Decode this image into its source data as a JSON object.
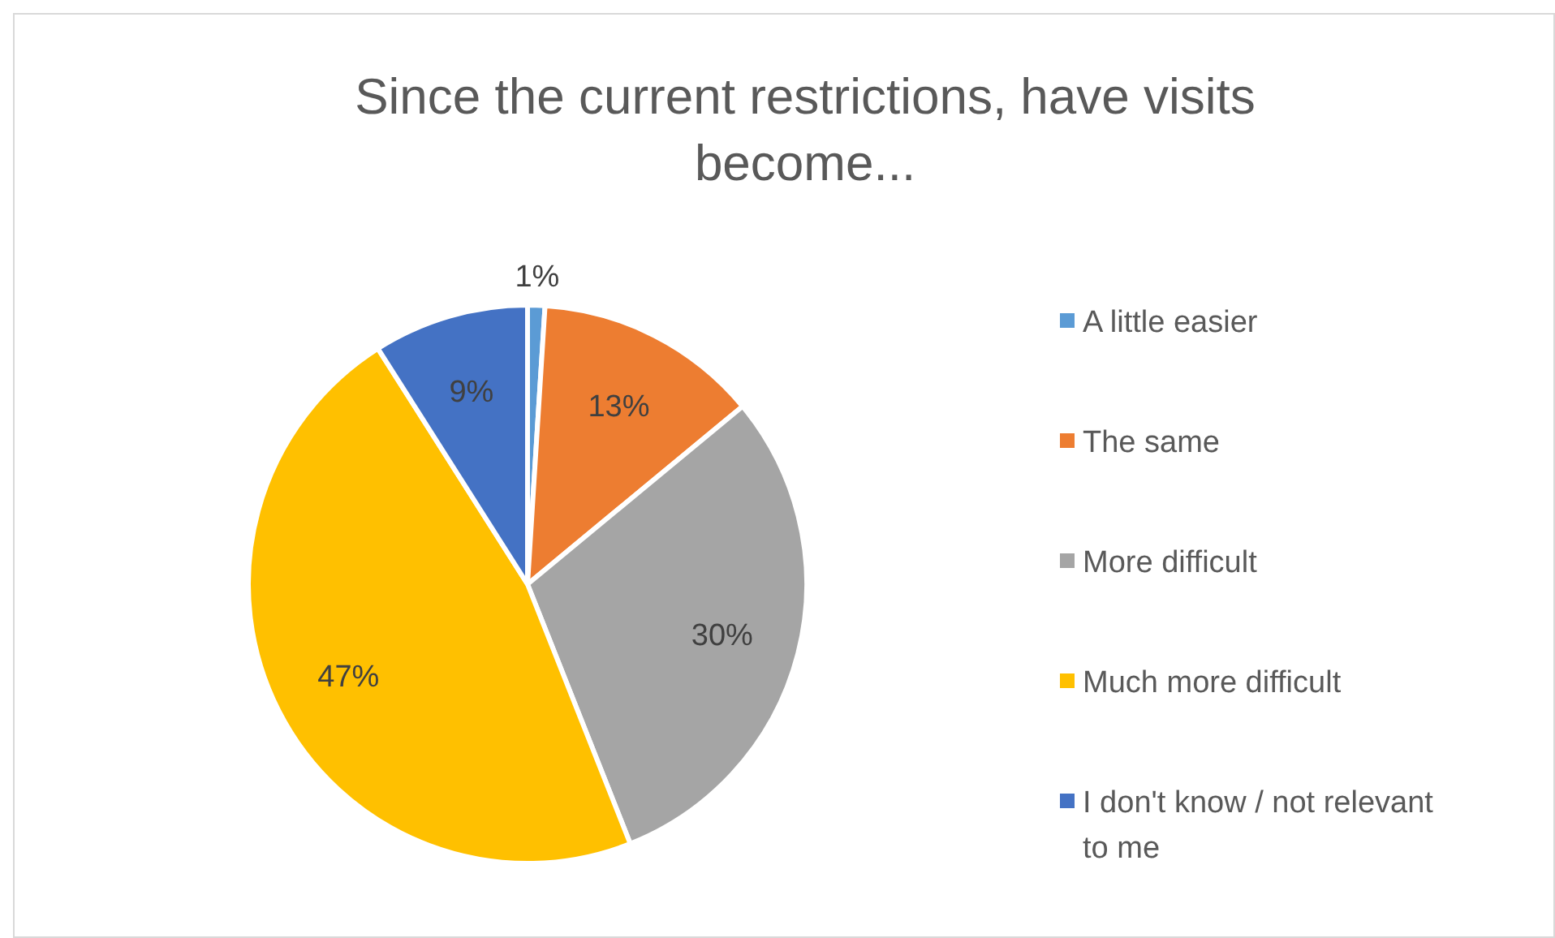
{
  "chart_data": {
    "type": "pie",
    "title": "Since the current restrictions, have visits become...",
    "categories": [
      "A little easier",
      "The same",
      "More difficult",
      "Much more difficult",
      "I don't know / not relevant to me"
    ],
    "values": [
      1,
      13,
      30,
      47,
      9
    ],
    "colors": [
      "#5b9bd5",
      "#ed7d31",
      "#a5a5a5",
      "#ffc000",
      "#4472c4"
    ],
    "value_labels": [
      "1%",
      "13%",
      "30%",
      "47%",
      "9%"
    ],
    "legend": "right"
  }
}
